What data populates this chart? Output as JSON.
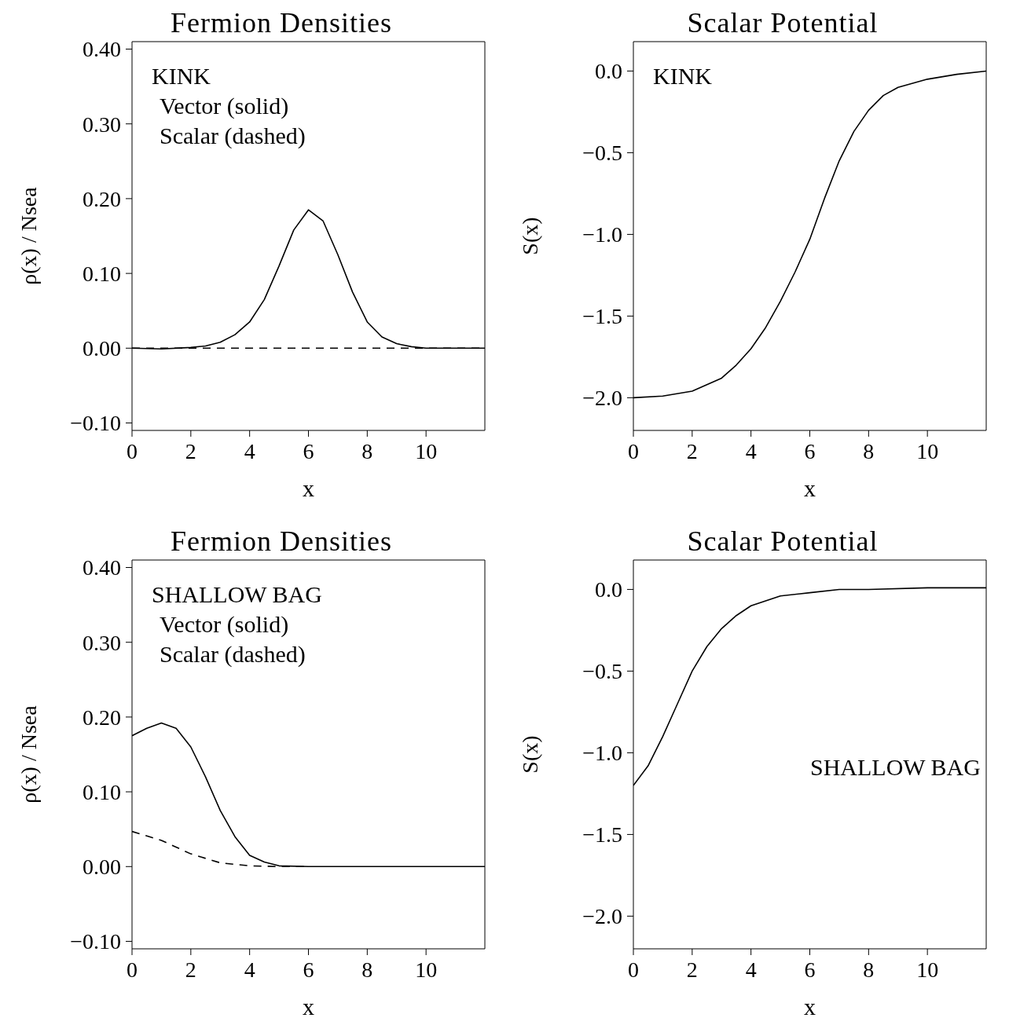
{
  "chart_data": [
    {
      "type": "line",
      "title": "Fermion Densities",
      "xlabel": "x",
      "ylabel": "ρ(x) / Nsea",
      "annotations": [
        "KINK",
        "Vector (solid)",
        "Scalar (dashed)"
      ],
      "xlim": [
        0,
        12
      ],
      "xticks": [
        0,
        2,
        4,
        6,
        8,
        10
      ],
      "ylim": [
        -0.11,
        0.41
      ],
      "yticks": [
        {
          "value": -0.1,
          "label": "−0.10"
        },
        {
          "value": 0,
          "label": "0.00"
        },
        {
          "value": 0.1,
          "label": "0.10"
        },
        {
          "value": 0.2,
          "label": "0.20"
        },
        {
          "value": 0.3,
          "label": "0.30"
        },
        {
          "value": 0.4,
          "label": "0.40"
        }
      ],
      "grid": false,
      "legend": false,
      "series": [
        {
          "color": "#000000",
          "line_style": "solid",
          "x": [
            0,
            1,
            2,
            2.5,
            3,
            3.5,
            4,
            4.5,
            5,
            5.5,
            6,
            6.5,
            7,
            7.5,
            8,
            8.5,
            9,
            9.5,
            10,
            11,
            12
          ],
          "values": [
            0,
            -0.001,
            0.001,
            0.003,
            0.008,
            0.018,
            0.035,
            0.065,
            0.11,
            0.158,
            0.185,
            0.17,
            0.125,
            0.075,
            0.035,
            0.015,
            0.006,
            0.002,
            0,
            0,
            0
          ]
        },
        {
          "color": "#000000",
          "line_style": "dashed",
          "x": [
            0,
            2,
            4,
            6,
            8,
            10,
            12
          ],
          "values": [
            0,
            0,
            0,
            0,
            0,
            0,
            0
          ]
        }
      ]
    },
    {
      "type": "line",
      "title": "Scalar Potential",
      "xlabel": "x",
      "ylabel": "S(x)",
      "annotations": [
        "KINK"
      ],
      "xlim": [
        0,
        12
      ],
      "xticks": [
        0,
        2,
        4,
        6,
        8,
        10
      ],
      "ylim": [
        -2.2,
        0.18
      ],
      "yticks": [
        {
          "value": -2,
          "label": "−2.0"
        },
        {
          "value": -1.5,
          "label": "−1.5"
        },
        {
          "value": -1,
          "label": "−1.0"
        },
        {
          "value": -0.5,
          "label": "−0.5"
        },
        {
          "value": 0,
          "label": "0.0"
        }
      ],
      "grid": false,
      "legend": false,
      "series": [
        {
          "color": "#000000",
          "line_style": "solid",
          "x": [
            0,
            1,
            2,
            3,
            3.5,
            4,
            4.5,
            5,
            5.5,
            6,
            6.5,
            7,
            7.5,
            8,
            8.5,
            9,
            10,
            11,
            12
          ],
          "values": [
            -2.0,
            -1.99,
            -1.96,
            -1.88,
            -1.8,
            -1.7,
            -1.57,
            -1.41,
            -1.23,
            -1.03,
            -0.78,
            -0.55,
            -0.37,
            -0.24,
            -0.15,
            -0.1,
            -0.05,
            -0.02,
            0.0
          ]
        }
      ]
    },
    {
      "type": "line",
      "title": "Fermion Densities",
      "xlabel": "x",
      "ylabel": "ρ(x) / Nsea",
      "annotations": [
        "SHALLOW BAG",
        "Vector (solid)",
        "Scalar (dashed)"
      ],
      "xlim": [
        0,
        12
      ],
      "xticks": [
        0,
        2,
        4,
        6,
        8,
        10
      ],
      "ylim": [
        -0.11,
        0.41
      ],
      "yticks": [
        {
          "value": -0.1,
          "label": "−0.10"
        },
        {
          "value": 0,
          "label": "0.00"
        },
        {
          "value": 0.1,
          "label": "0.10"
        },
        {
          "value": 0.2,
          "label": "0.20"
        },
        {
          "value": 0.3,
          "label": "0.30"
        },
        {
          "value": 0.4,
          "label": "0.40"
        }
      ],
      "grid": false,
      "legend": false,
      "series": [
        {
          "color": "#000000",
          "line_style": "solid",
          "x": [
            0,
            0.5,
            1,
            1.5,
            2,
            2.5,
            3,
            3.5,
            4,
            4.5,
            5,
            6,
            8,
            10,
            12
          ],
          "values": [
            0.175,
            0.185,
            0.192,
            0.185,
            0.16,
            0.12,
            0.075,
            0.04,
            0.015,
            0.006,
            0.001,
            0,
            0,
            0,
            0
          ]
        },
        {
          "color": "#000000",
          "line_style": "dashed",
          "x": [
            0,
            1,
            2,
            3,
            4,
            5,
            6
          ],
          "values": [
            0.047,
            0.035,
            0.017,
            0.005,
            0.001,
            0,
            0
          ]
        }
      ]
    },
    {
      "type": "line",
      "title": "Scalar Potential",
      "xlabel": "x",
      "ylabel": "S(x)",
      "annotations": [
        "SHALLOW BAG"
      ],
      "xlim": [
        0,
        12
      ],
      "xticks": [
        0,
        2,
        4,
        6,
        8,
        10
      ],
      "ylim": [
        -2.2,
        0.18
      ],
      "yticks": [
        {
          "value": -2,
          "label": "−2.0"
        },
        {
          "value": -1.5,
          "label": "−1.5"
        },
        {
          "value": -1,
          "label": "−1.0"
        },
        {
          "value": -0.5,
          "label": "−0.5"
        },
        {
          "value": 0,
          "label": "0.0"
        }
      ],
      "grid": false,
      "legend": false,
      "series": [
        {
          "color": "#000000",
          "line_style": "solid",
          "x": [
            0,
            0.5,
            1,
            1.5,
            2,
            2.5,
            3,
            3.5,
            4,
            5,
            6,
            7,
            8,
            10,
            12
          ],
          "values": [
            -1.2,
            -1.08,
            -0.9,
            -0.7,
            -0.5,
            -0.35,
            -0.24,
            -0.16,
            -0.1,
            -0.04,
            -0.02,
            0.0,
            0.0,
            0.01,
            0.01
          ]
        }
      ]
    }
  ]
}
